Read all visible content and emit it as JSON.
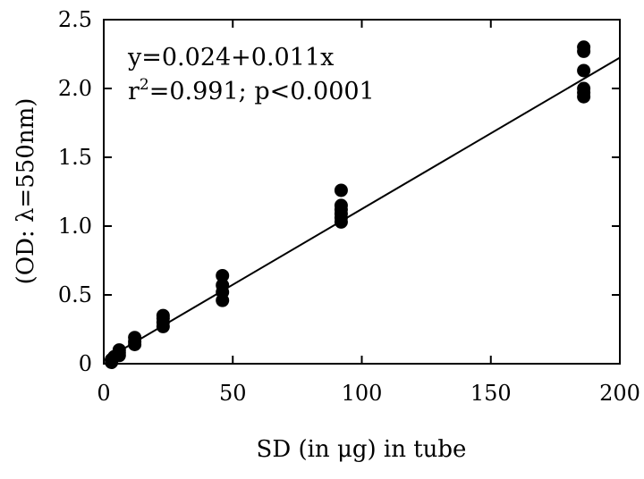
{
  "chart_data": {
    "type": "scatter",
    "title": "",
    "xlabel": "SD (in μg) in tube",
    "ylabel": "(OD: λ=550nm)",
    "xlim": [
      0,
      200
    ],
    "ylim": [
      0,
      2.5
    ],
    "xticks": [
      0,
      50,
      100,
      150,
      200
    ],
    "xtick_labels": [
      "0",
      "50",
      "100",
      "150",
      "200"
    ],
    "yticks": [
      0,
      0.5,
      1.0,
      1.5,
      2.0,
      2.5
    ],
    "ytick_labels": [
      "0",
      "0.5",
      "1.0",
      "1.5",
      "2.0",
      "2.5"
    ],
    "grid": false,
    "legend": "none",
    "marker_color": "#000000",
    "line_color": "#000000",
    "annotation": {
      "equation": "y=0.024+0.011x",
      "r_prefix": "r",
      "r_sup": "2",
      "r_suffix": "=0.991; p<0.0001"
    },
    "fit_line": {
      "intercept": 0.024,
      "slope": 0.011,
      "x_range": [
        0,
        200
      ]
    },
    "points": [
      {
        "x": 3,
        "y": 0.01
      },
      {
        "x": 3,
        "y": 0.03
      },
      {
        "x": 4,
        "y": 0.05
      },
      {
        "x": 6,
        "y": 0.06
      },
      {
        "x": 6,
        "y": 0.08
      },
      {
        "x": 6,
        "y": 0.1
      },
      {
        "x": 12,
        "y": 0.14
      },
      {
        "x": 12,
        "y": 0.16
      },
      {
        "x": 12,
        "y": 0.19
      },
      {
        "x": 23,
        "y": 0.27
      },
      {
        "x": 23,
        "y": 0.3
      },
      {
        "x": 23,
        "y": 0.33
      },
      {
        "x": 23,
        "y": 0.35
      },
      {
        "x": 46,
        "y": 0.46
      },
      {
        "x": 46,
        "y": 0.52
      },
      {
        "x": 46,
        "y": 0.57
      },
      {
        "x": 46,
        "y": 0.64
      },
      {
        "x": 92,
        "y": 1.03
      },
      {
        "x": 92,
        "y": 1.06
      },
      {
        "x": 92,
        "y": 1.09
      },
      {
        "x": 92,
        "y": 1.12
      },
      {
        "x": 92,
        "y": 1.15
      },
      {
        "x": 92,
        "y": 1.26
      },
      {
        "x": 186,
        "y": 1.94
      },
      {
        "x": 186,
        "y": 1.97
      },
      {
        "x": 186,
        "y": 2.0
      },
      {
        "x": 186,
        "y": 2.13
      },
      {
        "x": 186,
        "y": 2.27
      },
      {
        "x": 186,
        "y": 2.3
      }
    ]
  }
}
